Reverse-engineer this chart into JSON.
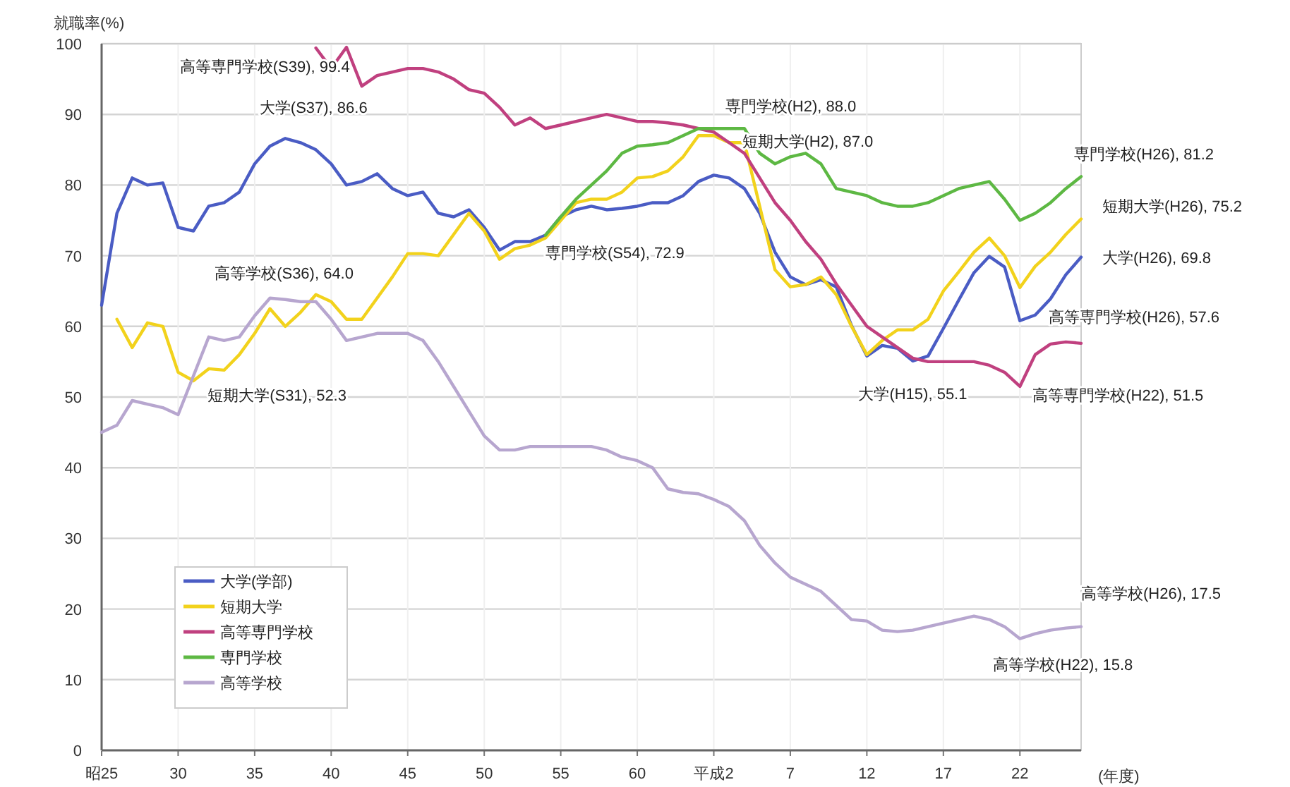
{
  "chart_data": {
    "type": "line",
    "ylabel": "就職率(%)",
    "xlabel": "(年度)",
    "categories": [
      "昭25",
      null,
      null,
      null,
      null,
      "30",
      null,
      null,
      null,
      null,
      "35",
      null,
      null,
      null,
      null,
      "40",
      null,
      null,
      null,
      null,
      "45",
      null,
      null,
      null,
      null,
      "50",
      null,
      null,
      null,
      null,
      "55",
      null,
      null,
      null,
      null,
      "60",
      null,
      null,
      null,
      null,
      "平成2",
      null,
      null,
      null,
      null,
      "7",
      null,
      null,
      null,
      null,
      "12",
      null,
      null,
      null,
      null,
      "17",
      null,
      null,
      null,
      null,
      "22",
      null,
      null,
      null,
      null
    ],
    "ylim": [
      0,
      100
    ],
    "yticks": [
      0,
      10,
      20,
      30,
      40,
      50,
      60,
      70,
      80,
      90,
      100
    ],
    "grid": true,
    "legend": "bottom left",
    "line_style": "solid",
    "series": [
      {
        "name": "大学(学部)",
        "color": "#4a5cc4",
        "values": [
          63,
          76,
          81,
          80,
          80.3,
          74,
          73.5,
          77,
          77.5,
          79,
          83,
          85.5,
          86.6,
          86,
          85,
          83,
          80,
          80.5,
          81.6,
          79.5,
          78.5,
          79,
          76,
          75.5,
          76.5,
          74,
          70.8,
          72,
          72,
          72.9,
          75.5,
          76.5,
          77,
          76.5,
          76.7,
          77,
          77.5,
          77.5,
          78.5,
          80.5,
          81.4,
          81,
          79.5,
          76,
          70.5,
          67,
          65.9,
          66.6,
          65.6,
          60.1,
          55.8,
          57.3,
          56.9,
          55.1,
          55.8,
          59.7,
          63.7,
          67.6,
          69.9,
          68.4,
          60.8,
          61.6,
          63.9,
          67.3,
          69.8
        ]
      },
      {
        "name": "短期大学",
        "color": "#f2d21c",
        "values": [
          null,
          61,
          57,
          60.5,
          60,
          53.5,
          52.3,
          54,
          53.8,
          56,
          59,
          62.5,
          60,
          62,
          64.5,
          63.5,
          61,
          61,
          64,
          67,
          70.3,
          70.3,
          70,
          73,
          76,
          73.5,
          69.5,
          71,
          71.5,
          72.5,
          75,
          77.5,
          78,
          78,
          79,
          81,
          81.2,
          82,
          84,
          87,
          87.0,
          86,
          86,
          77,
          68,
          65.6,
          65.9,
          67,
          64.5,
          60,
          56,
          58,
          59.5,
          59.5,
          61,
          65,
          67.7,
          70.5,
          72.5,
          70,
          65.5,
          68.5,
          70.5,
          73,
          75.2
        ]
      },
      {
        "name": "高等専門学校",
        "color": "#c0407f",
        "values": [
          null,
          null,
          null,
          null,
          null,
          null,
          null,
          null,
          null,
          null,
          null,
          null,
          null,
          null,
          99.4,
          96.5,
          99.5,
          94,
          95.5,
          96,
          96.5,
          96.5,
          96,
          95,
          93.5,
          93,
          91,
          88.5,
          89.5,
          88,
          88.5,
          89,
          89.5,
          90,
          89.5,
          89,
          89,
          88.8,
          88.5,
          88,
          87.5,
          86,
          84.5,
          81,
          77.5,
          75,
          72,
          69.5,
          66,
          63,
          60,
          58.5,
          57,
          55.5,
          55,
          55,
          55,
          55,
          54.5,
          53.5,
          51.5,
          56,
          57.5,
          57.8,
          57.6
        ]
      },
      {
        "name": "専門学校",
        "color": "#5db843",
        "values": [
          null,
          null,
          null,
          null,
          null,
          null,
          null,
          null,
          null,
          null,
          null,
          null,
          null,
          null,
          null,
          null,
          null,
          null,
          null,
          null,
          null,
          null,
          null,
          null,
          null,
          null,
          null,
          null,
          null,
          72.9,
          75.5,
          78,
          80,
          82,
          84.5,
          85.5,
          85.7,
          86,
          87,
          88,
          88.0,
          88,
          88,
          84.5,
          83,
          84,
          84.5,
          83,
          79.5,
          79,
          78.5,
          77.5,
          77,
          77,
          77.5,
          78.5,
          79.5,
          80,
          80.5,
          78,
          75,
          76,
          77.5,
          79.5,
          81.2
        ]
      },
      {
        "name": "高等学校",
        "color": "#b7a6cf",
        "values": [
          45,
          46,
          49.5,
          49,
          48.5,
          47.5,
          53,
          58.5,
          58,
          58.5,
          61.5,
          64,
          63.8,
          63.5,
          63.5,
          61,
          58,
          58.5,
          59,
          59,
          59,
          58,
          55,
          51.5,
          48,
          44.5,
          42.5,
          42.5,
          43,
          43,
          43,
          43,
          43,
          42.5,
          41.5,
          41,
          40,
          37,
          36.5,
          36.3,
          35.5,
          34.5,
          32.5,
          29,
          26.5,
          24.5,
          23.5,
          22.5,
          20.5,
          18.5,
          18.3,
          17,
          16.8,
          17,
          17.5,
          18,
          18.5,
          19,
          18.5,
          17.5,
          15.8,
          16.5,
          17,
          17.3,
          17.5
        ]
      }
    ],
    "annotations": [
      "高等専門学校(S39), 99.4",
      "大学(S37), 86.6",
      "高等学校(S36), 64.0",
      "短期大学(S31), 52.3",
      "専門学校(S54), 72.9",
      "専門学校(H2), 88.0",
      "短期大学(H2), 87.0",
      "専門学校(H26), 81.2",
      "短期大学(H26), 75.2",
      "大学(H26), 69.8",
      "高等専門学校(H26), 57.6",
      "大学(H15), 55.1",
      "高等専門学校(H22), 51.5",
      "高等学校(H26), 17.5",
      "高等学校(H22), 15.8"
    ]
  }
}
